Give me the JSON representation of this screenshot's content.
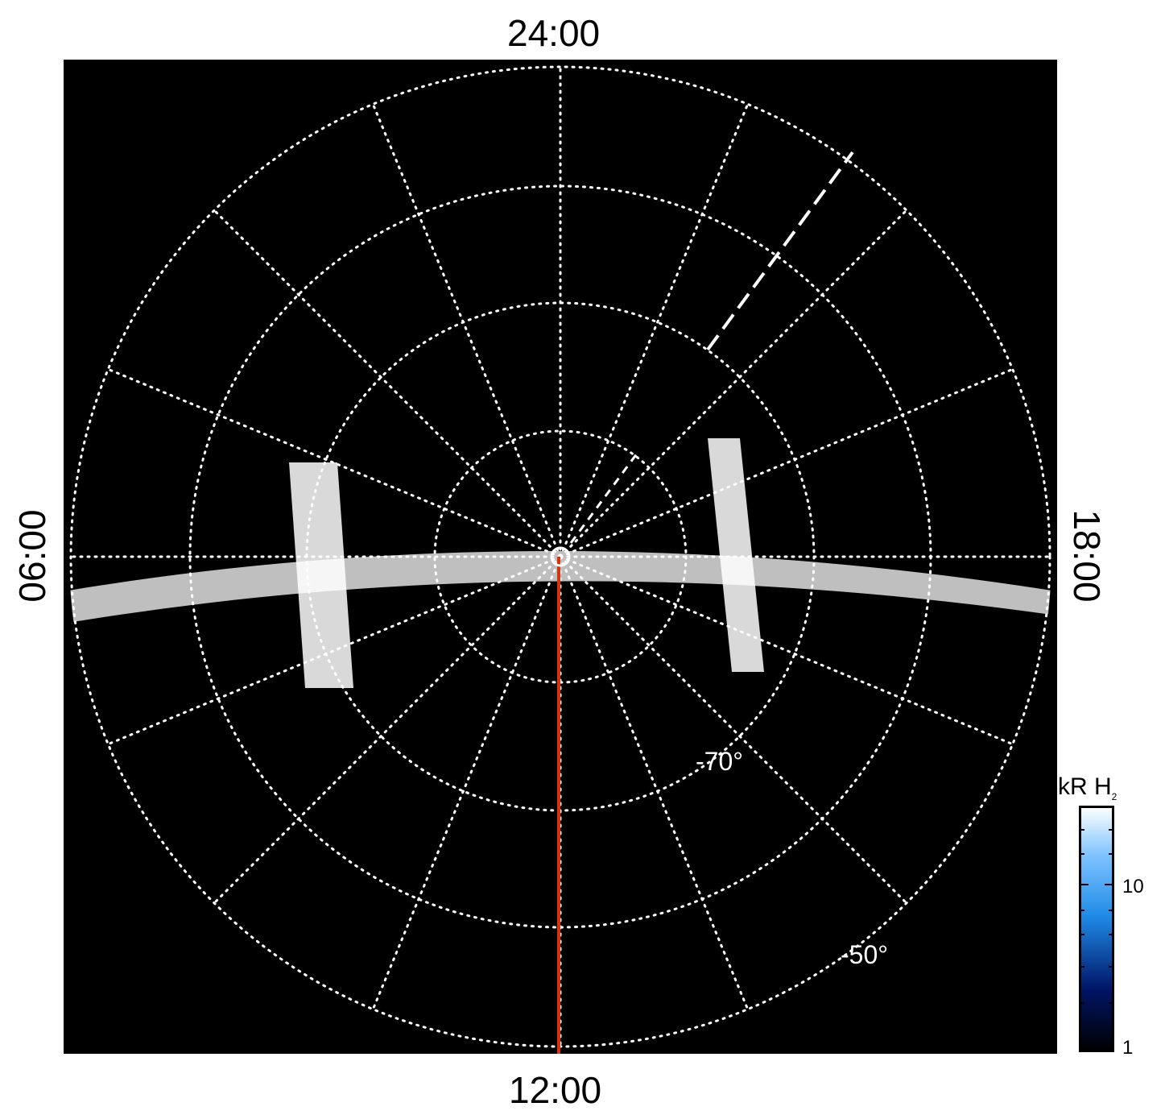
{
  "figure": {
    "top_label": "24:00",
    "bottom_label": "12:00",
    "left_label": "06:00",
    "right_label": "18:00",
    "lat_label_inner": "-70°",
    "lat_label_outer": "-50°"
  },
  "colorbar": {
    "title": "kR H",
    "title_sub": "2",
    "tick_labels": [
      "10",
      "1"
    ],
    "scale": "log",
    "range": [
      1,
      25
    ]
  },
  "colors": {
    "background": "#000000",
    "dark_blue": "#001a66",
    "mid_blue": "#1f8ae6",
    "light_blue": "#7ec3ff",
    "white": "#ffffff",
    "marker_red": "#d9330d"
  }
}
